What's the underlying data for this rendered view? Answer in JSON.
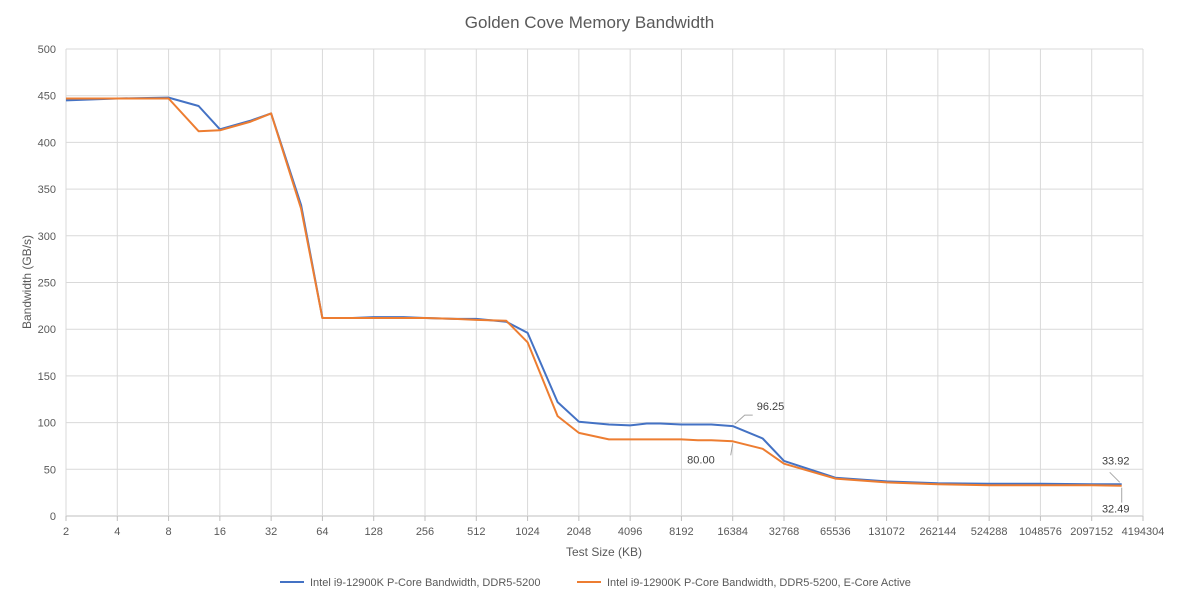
{
  "chart_data": {
    "type": "line",
    "title": "Golden Cove Memory Bandwidth",
    "xlabel": "Test Size (KB)",
    "ylabel": "Bandwidth (GB/s)",
    "ylim": [
      0,
      500
    ],
    "yticks": [
      0,
      50,
      100,
      150,
      200,
      250,
      300,
      350,
      400,
      450,
      500
    ],
    "xticks": [
      "2",
      "4",
      "8",
      "16",
      "32",
      "64",
      "128",
      "256",
      "512",
      "1024",
      "2048",
      "4096",
      "8192",
      "16384",
      "32768",
      "65536",
      "131072",
      "262144",
      "524288",
      "1048576",
      "2097152",
      "4194304"
    ],
    "xscale": "log2",
    "grid": true,
    "legend": "bottom",
    "series": [
      {
        "name": "Intel i9-12900K P-Core Bandwidth, DDR5-5200",
        "color": "#4472c4",
        "x": [
          2,
          4,
          8,
          12,
          16,
          24,
          32,
          48,
          64,
          96,
          128,
          192,
          256,
          384,
          512,
          768,
          1024,
          1536,
          2048,
          3072,
          4096,
          5120,
          6144,
          8192,
          10240,
          12288,
          16384,
          24576,
          32768,
          65536,
          131072,
          262144,
          524288,
          1048576,
          2097152,
          3145728
        ],
        "y": [
          445,
          447,
          448,
          439,
          414,
          423,
          431,
          333,
          212,
          212,
          213,
          213,
          212,
          211,
          211,
          208,
          196,
          122,
          101,
          98,
          97,
          99,
          99,
          98,
          98,
          98,
          96.25,
          83,
          59,
          41,
          37,
          35,
          34.5,
          34.5,
          34,
          33.92
        ]
      },
      {
        "name": "Intel i9-12900K P-Core Bandwidth, DDR5-5200, E-Core Active",
        "color": "#ed7d31",
        "x": [
          2,
          4,
          8,
          12,
          16,
          24,
          32,
          48,
          64,
          96,
          128,
          192,
          256,
          384,
          512,
          768,
          1024,
          1536,
          2048,
          3072,
          4096,
          5120,
          6144,
          8192,
          10240,
          12288,
          16384,
          24576,
          32768,
          65536,
          131072,
          262144,
          524288,
          1048576,
          2097152,
          3145728
        ],
        "y": [
          447,
          447,
          447,
          412,
          413,
          422,
          431,
          329,
          212,
          212,
          212,
          212,
          212,
          211,
          210,
          209,
          186,
          107,
          89,
          82,
          82,
          82,
          82,
          82,
          81,
          81,
          80.0,
          72,
          56,
          40,
          36,
          34,
          33,
          33,
          33,
          32.49
        ]
      }
    ],
    "annotations": [
      {
        "text": "96.25",
        "series": 0,
        "x": 16384,
        "y": 96.25
      },
      {
        "text": "80.00",
        "series": 1,
        "x": 16384,
        "y": 80.0
      },
      {
        "text": "33.92",
        "series": 0,
        "x": 3145728,
        "y": 33.92
      },
      {
        "text": "32.49",
        "series": 1,
        "x": 3145728,
        "y": 32.49
      }
    ]
  }
}
